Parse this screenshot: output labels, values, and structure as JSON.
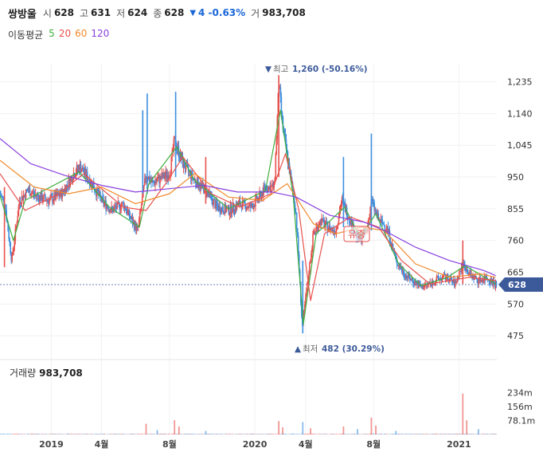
{
  "header": {
    "name": "쌍방울",
    "open_label": "시",
    "open": "628",
    "high_label": "고",
    "high": "631",
    "low_label": "저",
    "low": "624",
    "close_label": "종",
    "close": "628",
    "change_arrow": "▼",
    "change": "4 -0.63%",
    "volume_label": "거",
    "volume": "983,708"
  },
  "ma_legend": {
    "title": "이동평균",
    "items": [
      {
        "label": "5",
        "color": "#3fae3f"
      },
      {
        "label": "20",
        "color": "#e8514d"
      },
      {
        "label": "60",
        "color": "#f08a2c"
      },
      {
        "label": "120",
        "color": "#8a3fe0"
      }
    ]
  },
  "volume_panel": {
    "title": "거래량",
    "value": "983,708"
  },
  "annotations": {
    "max_marker": "▼",
    "max_label": "최고",
    "max_value": "1,260 (-50.16%)",
    "min_marker": "▲",
    "min_label": "최저",
    "min_value": "482 (30.29%)",
    "event_label": "유증"
  },
  "colors": {
    "up": "#e8514d",
    "down": "#3d8fe0",
    "price_tag": "#3c5a9a",
    "event_tag": "#e8514d"
  },
  "chart_data": {
    "type": "candlestick",
    "ylim": [
      430,
      1265
    ],
    "y_ticks": [
      1235,
      1140,
      1045,
      950,
      855,
      760,
      665,
      570,
      475
    ],
    "y_tick_labels": [
      "1,235",
      "1,140",
      "1,045",
      "950",
      "855",
      "760",
      "665",
      "570",
      "475"
    ],
    "current_price": 628,
    "current_price_label": "628",
    "x_range": [
      "2018-10-01",
      "2021-03-10"
    ],
    "x_ticks": [
      {
        "date": "2019-01-01",
        "label": "2019"
      },
      {
        "date": "2019-04-01",
        "label": "4월"
      },
      {
        "date": "2019-08-01",
        "label": "8월"
      },
      {
        "date": "2020-01-01",
        "label": "2020"
      },
      {
        "date": "2020-04-01",
        "label": "4월"
      },
      {
        "date": "2020-08-01",
        "label": "8월"
      },
      {
        "date": "2021-01-01",
        "label": "2021"
      }
    ],
    "price_path": [
      [
        "2018-10-01",
        900
      ],
      [
        "2018-10-10",
        870
      ],
      [
        "2018-10-22",
        700
      ],
      [
        "2018-11-05",
        880
      ],
      [
        "2018-11-20",
        910
      ],
      [
        "2018-12-10",
        890
      ],
      [
        "2018-12-28",
        880
      ],
      [
        "2019-01-20",
        900
      ],
      [
        "2019-02-10",
        960
      ],
      [
        "2019-02-22",
        980
      ],
      [
        "2019-03-15",
        930
      ],
      [
        "2019-04-01",
        880
      ],
      [
        "2019-04-20",
        850
      ],
      [
        "2019-05-10",
        870
      ],
      [
        "2019-05-25",
        820
      ],
      [
        "2019-06-05",
        790
      ],
      [
        "2019-06-20",
        960
      ],
      [
        "2019-07-01",
        930
      ],
      [
        "2019-07-20",
        950
      ],
      [
        "2019-08-01",
        960
      ],
      [
        "2019-08-10",
        1060
      ],
      [
        "2019-08-25",
        990
      ],
      [
        "2019-09-15",
        940
      ],
      [
        "2019-10-05",
        910
      ],
      [
        "2019-10-25",
        860
      ],
      [
        "2019-11-15",
        850
      ],
      [
        "2019-12-05",
        870
      ],
      [
        "2019-12-25",
        860
      ],
      [
        "2020-01-10",
        890
      ],
      [
        "2020-01-20",
        920
      ],
      [
        "2020-02-05",
        920
      ],
      [
        "2020-02-13",
        1230
      ],
      [
        "2020-02-20",
        1100
      ],
      [
        "2020-03-05",
        950
      ],
      [
        "2020-03-15",
        840
      ],
      [
        "2020-03-20",
        690
      ],
      [
        "2020-03-26",
        500
      ],
      [
        "2020-04-05",
        640
      ],
      [
        "2020-04-15",
        780
      ],
      [
        "2020-04-28",
        820
      ],
      [
        "2020-05-10",
        800
      ],
      [
        "2020-05-25",
        790
      ],
      [
        "2020-06-05",
        880
      ],
      [
        "2020-06-20",
        820
      ],
      [
        "2020-07-05",
        760
      ],
      [
        "2020-07-20",
        790
      ],
      [
        "2020-07-28",
        880
      ],
      [
        "2020-08-10",
        820
      ],
      [
        "2020-08-25",
        800
      ],
      [
        "2020-09-10",
        700
      ],
      [
        "2020-09-25",
        660
      ],
      [
        "2020-10-10",
        640
      ],
      [
        "2020-10-25",
        620
      ],
      [
        "2020-11-10",
        630
      ],
      [
        "2020-11-25",
        645
      ],
      [
        "2020-12-10",
        650
      ],
      [
        "2020-12-25",
        630
      ],
      [
        "2021-01-08",
        690
      ],
      [
        "2021-01-20",
        660
      ],
      [
        "2021-02-05",
        640
      ],
      [
        "2021-02-20",
        650
      ],
      [
        "2021-03-08",
        628
      ]
    ],
    "wick_spikes": [
      [
        "2018-10-09",
        680,
        920
      ],
      [
        "2019-06-22",
        900,
        1200
      ],
      [
        "2019-08-12",
        950,
        1205
      ],
      [
        "2019-06-14",
        900,
        1150
      ],
      [
        "2020-02-13",
        950,
        1255
      ],
      [
        "2020-03-27",
        482,
        700
      ],
      [
        "2020-06-08",
        800,
        1010
      ],
      [
        "2020-07-28",
        790,
        1080
      ],
      [
        "2021-01-08",
        630,
        760
      ],
      [
        "2019-10-05",
        870,
        1010
      ]
    ],
    "ma_lines": [
      {
        "period": "5",
        "points": [
          [
            "2018-10-01",
            895
          ],
          [
            "2018-10-25",
            760
          ],
          [
            "2018-11-15",
            880
          ],
          [
            "2019-02-20",
            965
          ],
          [
            "2019-04-15",
            860
          ],
          [
            "2019-06-08",
            800
          ],
          [
            "2019-06-25",
            930
          ],
          [
            "2019-08-14",
            1040
          ],
          [
            "2019-09-15",
            940
          ],
          [
            "2019-11-15",
            855
          ],
          [
            "2020-01-20",
            910
          ],
          [
            "2020-02-16",
            1150
          ],
          [
            "2020-03-10",
            890
          ],
          [
            "2020-03-28",
            510
          ],
          [
            "2020-04-20",
            780
          ],
          [
            "2020-06-10",
            860
          ],
          [
            "2020-07-08",
            770
          ],
          [
            "2020-08-05",
            840
          ],
          [
            "2020-09-15",
            690
          ],
          [
            "2020-10-25",
            625
          ],
          [
            "2020-12-10",
            648
          ],
          [
            "2021-01-12",
            685
          ],
          [
            "2021-03-08",
            630
          ]
        ]
      },
      {
        "period": "20",
        "points": [
          [
            "2018-10-01",
            960
          ],
          [
            "2018-11-15",
            850
          ],
          [
            "2019-01-15",
            900
          ],
          [
            "2019-02-28",
            960
          ],
          [
            "2019-05-10",
            860
          ],
          [
            "2019-06-20",
            850
          ],
          [
            "2019-07-25",
            930
          ],
          [
            "2019-08-25",
            1010
          ],
          [
            "2019-10-15",
            900
          ],
          [
            "2019-12-05",
            860
          ],
          [
            "2020-01-30",
            900
          ],
          [
            "2020-02-25",
            1020
          ],
          [
            "2020-03-20",
            850
          ],
          [
            "2020-04-10",
            580
          ],
          [
            "2020-05-05",
            780
          ],
          [
            "2020-06-20",
            830
          ],
          [
            "2020-08-10",
            800
          ],
          [
            "2020-09-20",
            700
          ],
          [
            "2020-11-10",
            630
          ],
          [
            "2021-01-20",
            650
          ],
          [
            "2021-03-08",
            640
          ]
        ]
      },
      {
        "period": "60",
        "points": [
          [
            "2018-10-01",
            1000
          ],
          [
            "2018-12-01",
            920
          ],
          [
            "2019-02-01",
            900
          ],
          [
            "2019-04-01",
            920
          ],
          [
            "2019-06-01",
            870
          ],
          [
            "2019-08-01",
            900
          ],
          [
            "2019-09-15",
            960
          ],
          [
            "2019-11-15",
            890
          ],
          [
            "2020-01-15",
            880
          ],
          [
            "2020-02-28",
            930
          ],
          [
            "2020-04-15",
            810
          ],
          [
            "2020-05-25",
            780
          ],
          [
            "2020-07-10",
            800
          ],
          [
            "2020-08-20",
            790
          ],
          [
            "2020-10-15",
            690
          ],
          [
            "2020-12-15",
            650
          ],
          [
            "2021-02-10",
            660
          ],
          [
            "2021-03-08",
            650
          ]
        ]
      },
      {
        "period": "120",
        "points": [
          [
            "2018-10-01",
            1065
          ],
          [
            "2018-11-25",
            990
          ],
          [
            "2019-01-25",
            955
          ],
          [
            "2019-04-01",
            925
          ],
          [
            "2019-06-01",
            905
          ],
          [
            "2019-08-01",
            915
          ],
          [
            "2019-10-01",
            925
          ],
          [
            "2019-12-01",
            905
          ],
          [
            "2020-02-01",
            905
          ],
          [
            "2020-03-15",
            890
          ],
          [
            "2020-05-15",
            835
          ],
          [
            "2020-07-15",
            815
          ],
          [
            "2020-08-20",
            790
          ],
          [
            "2020-10-15",
            740
          ],
          [
            "2020-12-15",
            700
          ],
          [
            "2021-02-15",
            670
          ],
          [
            "2021-03-08",
            655
          ]
        ]
      }
    ],
    "volume": {
      "ylim": [
        0,
        300
      ],
      "y_ticks": [
        234,
        156,
        78.1
      ],
      "y_tick_labels": [
        "234m",
        "156m",
        "78.1m"
      ],
      "spikes": [
        [
          "2019-06-20",
          60
        ],
        [
          "2019-07-10",
          25
        ],
        [
          "2019-08-10",
          80
        ],
        [
          "2019-08-18",
          45
        ],
        [
          "2019-10-05",
          20
        ],
        [
          "2020-02-13",
          75
        ],
        [
          "2020-02-20",
          40
        ],
        [
          "2020-03-27",
          70
        ],
        [
          "2020-04-10",
          35
        ],
        [
          "2020-06-08",
          45
        ],
        [
          "2020-07-03",
          30
        ],
        [
          "2020-07-28",
          95
        ],
        [
          "2020-08-05",
          50
        ],
        [
          "2020-09-10",
          20
        ],
        [
          "2021-01-08",
          230
        ],
        [
          "2021-01-15",
          80
        ],
        [
          "2021-02-05",
          30
        ]
      ]
    }
  }
}
